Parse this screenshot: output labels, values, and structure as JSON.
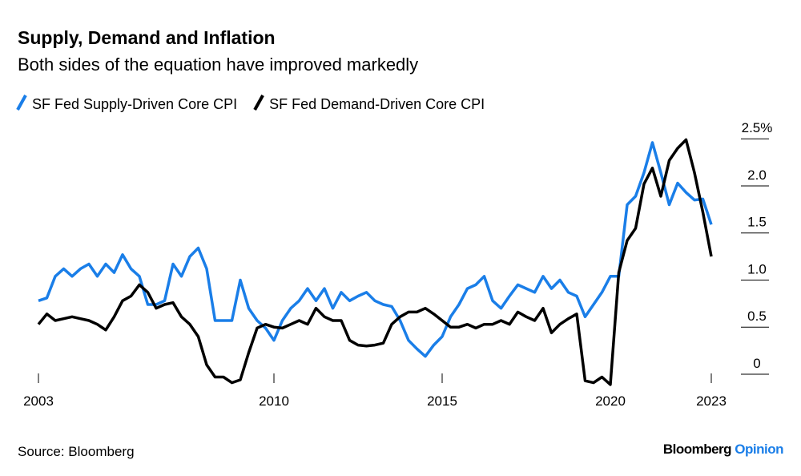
{
  "chart_data": {
    "type": "line",
    "title": "Supply, Demand and Inflation",
    "subtitle": "Both sides of the equation have improved markedly",
    "source": "Source: Bloomberg",
    "logo": [
      "Bloomberg",
      "Opinion"
    ],
    "x": [
      2003,
      2003.25,
      2003.5,
      2003.75,
      2004,
      2004.25,
      2004.5,
      2004.75,
      2005,
      2005.25,
      2005.5,
      2005.75,
      2006,
      2006.25,
      2006.5,
      2006.75,
      2007,
      2007.25,
      2007.5,
      2007.75,
      2008,
      2008.25,
      2008.5,
      2008.75,
      2009,
      2009.25,
      2009.5,
      2009.75,
      2010,
      2010.25,
      2010.5,
      2010.75,
      2011,
      2011.25,
      2011.5,
      2011.75,
      2012,
      2012.25,
      2012.5,
      2012.75,
      2013,
      2013.25,
      2013.5,
      2013.75,
      2014,
      2014.25,
      2014.5,
      2014.75,
      2015,
      2015.25,
      2015.5,
      2015.75,
      2016,
      2016.25,
      2016.5,
      2016.75,
      2017,
      2017.25,
      2017.5,
      2017.75,
      2018,
      2018.25,
      2018.5,
      2018.75,
      2019,
      2019.25,
      2019.5,
      2019.75,
      2020,
      2020.25,
      2020.5,
      2020.75,
      2021,
      2021.25,
      2021.5,
      2021.75,
      2022,
      2022.25,
      2022.5,
      2022.75,
      2023
    ],
    "series": [
      {
        "name": "SF Fed Supply-Driven Core CPI",
        "color": "#1a7ee8",
        "values": [
          0.78,
          0.81,
          1.04,
          1.12,
          1.04,
          1.12,
          1.17,
          1.04,
          1.17,
          1.08,
          1.27,
          1.12,
          1.04,
          0.74,
          0.74,
          0.78,
          1.17,
          1.04,
          1.25,
          1.34,
          1.12,
          0.57,
          0.57,
          0.57,
          1.0,
          0.7,
          0.57,
          0.49,
          0.36,
          0.57,
          0.7,
          0.78,
          0.91,
          0.78,
          0.91,
          0.7,
          0.87,
          0.78,
          0.83,
          0.87,
          0.78,
          0.74,
          0.72,
          0.57,
          0.36,
          0.27,
          0.19,
          0.31,
          0.4,
          0.61,
          0.74,
          0.91,
          0.95,
          1.04,
          0.78,
          0.7,
          0.83,
          0.95,
          0.91,
          0.87,
          1.04,
          0.91,
          1.0,
          0.87,
          0.83,
          0.61,
          0.74,
          0.87,
          1.04,
          1.04,
          1.8,
          1.89,
          2.14,
          2.46,
          2.14,
          1.8,
          2.03,
          1.93,
          1.85,
          1.86,
          1.59
        ]
      },
      {
        "name": "SF Fed Demand-Driven Core CPI",
        "color": "#000000",
        "values": [
          0.53,
          0.64,
          0.57,
          0.59,
          0.61,
          0.59,
          0.57,
          0.53,
          0.47,
          0.61,
          0.78,
          0.83,
          0.95,
          0.87,
          0.7,
          0.74,
          0.76,
          0.61,
          0.53,
          0.4,
          0.1,
          -0.03,
          -0.03,
          -0.09,
          -0.06,
          0.23,
          0.49,
          0.53,
          0.5,
          0.49,
          0.53,
          0.57,
          0.53,
          0.7,
          0.61,
          0.57,
          0.57,
          0.36,
          0.31,
          0.3,
          0.31,
          0.33,
          0.53,
          0.61,
          0.66,
          0.66,
          0.7,
          0.64,
          0.57,
          0.5,
          0.5,
          0.53,
          0.49,
          0.53,
          0.53,
          0.57,
          0.53,
          0.66,
          0.61,
          0.57,
          0.7,
          0.44,
          0.53,
          0.59,
          0.64,
          -0.07,
          -0.09,
          -0.03,
          -0.11,
          1.08,
          1.42,
          1.55,
          2.02,
          2.19,
          1.89,
          2.27,
          2.4,
          2.49,
          2.14,
          1.72,
          1.25
        ]
      }
    ],
    "xlim": [
      2003,
      2023
    ],
    "xticks": [
      2003,
      2010,
      2015,
      2020,
      2023
    ],
    "ylim": [
      -0.15,
      2.6
    ],
    "yticks": [
      {
        "value": 2.5,
        "label": "2.5%"
      },
      {
        "value": 2,
        "label": "2.0"
      },
      {
        "value": 1.5,
        "label": "1.5"
      },
      {
        "value": 1,
        "label": "1.0"
      },
      0.5,
      0
    ]
  }
}
